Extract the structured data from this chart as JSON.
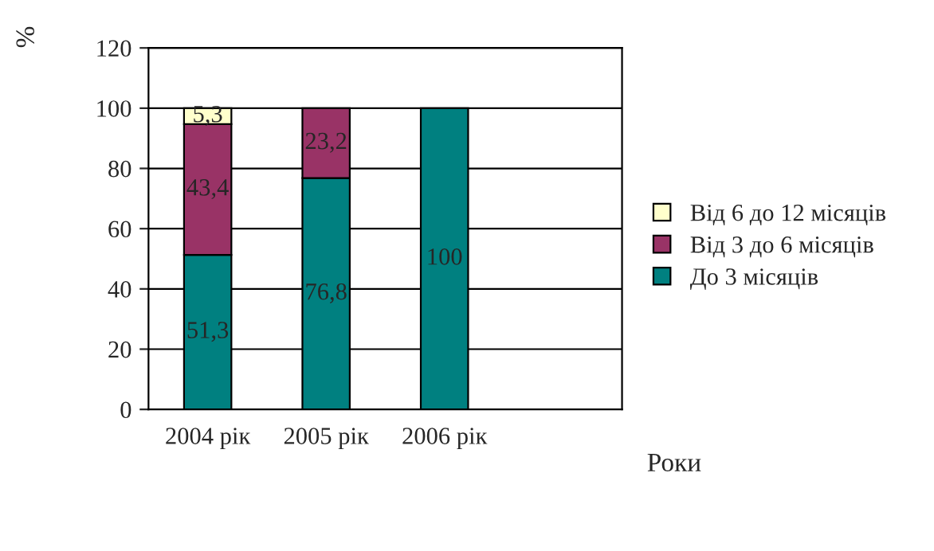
{
  "chart_data": {
    "type": "bar",
    "stacked": true,
    "categories": [
      "2004 рік",
      "2005 рік",
      "2006 рік",
      null
    ],
    "series": [
      {
        "name": "До 3 місяців",
        "color": "#008080",
        "values": [
          51.3,
          76.8,
          100,
          null
        ],
        "value_labels": [
          "51,3",
          "76,8",
          "100",
          null
        ]
      },
      {
        "name": "Від 3 до 6 місяців",
        "color": "#993366",
        "values": [
          43.4,
          23.2,
          null,
          null
        ],
        "value_labels": [
          "43,4",
          "23,2",
          null,
          null
        ]
      },
      {
        "name": "Від 6 до 12 місяців",
        "color": "#ffffcc",
        "values": [
          5.3,
          null,
          null,
          null
        ],
        "value_labels": [
          "5,3",
          null,
          null,
          null
        ]
      }
    ],
    "xlabel": "Роки",
    "ylabel": "%",
    "ylim": [
      0,
      120
    ],
    "yticks": [
      0,
      20,
      40,
      60,
      80,
      100,
      120
    ],
    "grid": "y",
    "legend": "right"
  }
}
